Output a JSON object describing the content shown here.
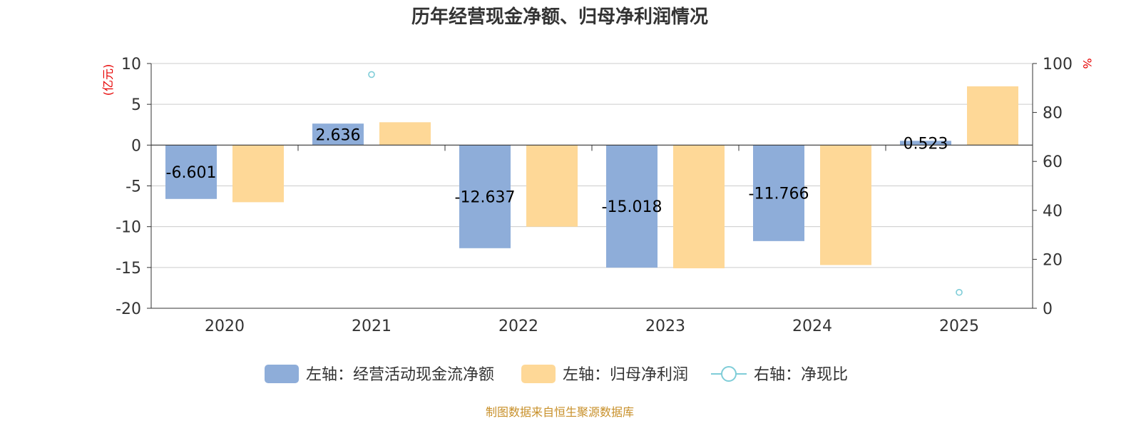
{
  "chart_data": {
    "type": "bar",
    "title": "历年经营现金净额、归母净利润情况",
    "categories": [
      "2020",
      "2021",
      "2022",
      "2023",
      "2024",
      "2025"
    ],
    "left_axis": {
      "unit": "(亿元)",
      "ylim": [
        -20,
        10
      ],
      "ticks": [
        10,
        5,
        0,
        -5,
        -10,
        -15,
        -20
      ]
    },
    "right_axis": {
      "unit": "%",
      "ylim": [
        0,
        100
      ],
      "ticks": [
        100,
        80,
        60,
        40,
        20,
        0
      ]
    },
    "series": [
      {
        "name": "左轴：经营活动现金流净额",
        "kind": "bar",
        "axis": "left",
        "color": "#8eadd9",
        "values": [
          -6.601,
          2.636,
          -12.637,
          -15.018,
          -11.766,
          0.523
        ],
        "data_labels": [
          "-6.601",
          "2.636",
          "-12.637",
          "-15.018",
          "-11.766",
          "0.523"
        ]
      },
      {
        "name": "左轴：归母净利润",
        "kind": "bar",
        "axis": "left",
        "color": "#fed897",
        "values": [
          -7.0,
          2.8,
          -10.0,
          -15.1,
          -14.7,
          7.2
        ]
      },
      {
        "name": "右轴：净现比",
        "kind": "scatter",
        "axis": "right",
        "color": "#7fcdd8",
        "values": [
          null,
          95.5,
          null,
          null,
          null,
          6.5
        ]
      }
    ],
    "grid": true,
    "legend_position": "bottom"
  },
  "source_note": "制图数据来自恒生聚源数据库"
}
